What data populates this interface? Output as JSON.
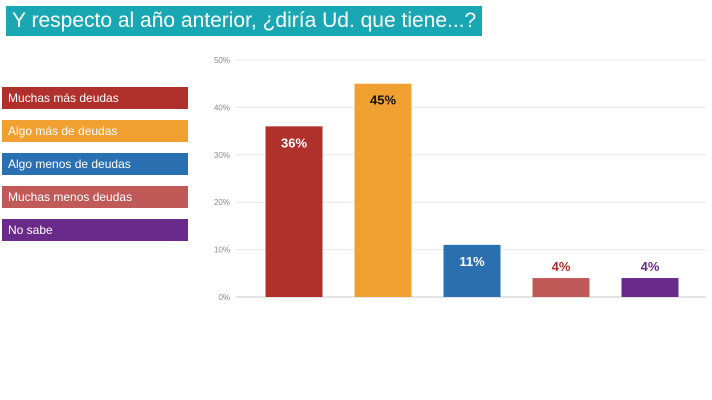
{
  "title": "Y respecto al año anterior, ¿diría Ud. que tiene...?",
  "colors": {
    "title_bg": "#1aa7b4",
    "grid": "#e6e6e6",
    "axis": "#c8c8c8"
  },
  "chart_data": {
    "type": "bar",
    "title": "Y respecto al año anterior, ¿diría Ud. que tiene...?",
    "categories": [
      "Muchas más deudas",
      "Algo más de deudas",
      "Algo menos de deudas",
      "Muchas menos deudas",
      "No sabe"
    ],
    "values": [
      36,
      45,
      11,
      4,
      4
    ],
    "value_labels": [
      "36%",
      "45%",
      "11%",
      "4%",
      "4%"
    ],
    "colors": [
      "#b0302c",
      "#f0a030",
      "#2a6fb0",
      "#c05a58",
      "#6a2a8a"
    ],
    "label_colors": [
      "#ffffff",
      "#111111",
      "#ffffff",
      "#b0302c",
      "#6a2a8a"
    ],
    "label_inside": [
      true,
      true,
      true,
      false,
      false
    ],
    "ylim": [
      0,
      50
    ],
    "yticks": [
      0,
      10,
      20,
      30,
      40,
      50
    ],
    "ytick_labels": [
      "0%",
      "10%",
      "20%",
      "30%",
      "40%",
      "50%"
    ],
    "grid": true,
    "legend": "left"
  }
}
